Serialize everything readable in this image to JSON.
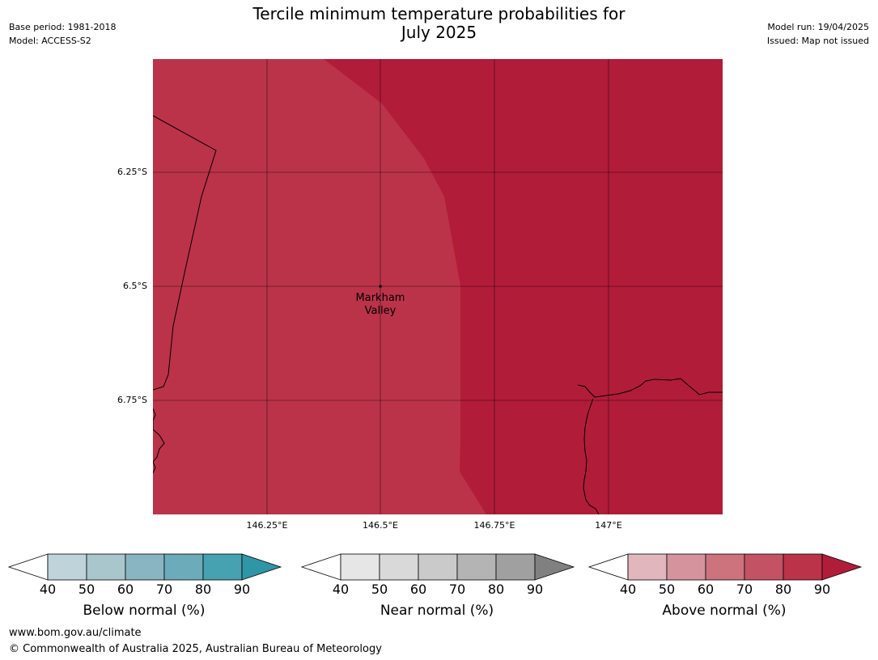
{
  "header": {
    "title_line1": "Tercile minimum temperature probabilities for",
    "title_line2": "July 2025",
    "base_period": "Base period: 1981-2018",
    "model": "Model: ACCESS-S2",
    "model_run": "Model run: 19/04/2025",
    "issued": "Issued: Map not issued"
  },
  "map": {
    "lat_ticks": [
      "6.25°S",
      "6.5°S",
      "6.75°S"
    ],
    "lon_ticks": [
      "146.25°E",
      "146.5°E",
      "146.75°E",
      "147°E"
    ],
    "place": {
      "name_line1": "Markham",
      "name_line2": "Valley"
    },
    "colors": {
      "zone_above_80_90": "#bb3349",
      "zone_above_90": "#b11c39",
      "coastline": "#000000",
      "gridline": "#000000"
    }
  },
  "colorbars": [
    {
      "title": "Below normal (%)",
      "ticks": [
        "40",
        "50",
        "60",
        "70",
        "80",
        "90"
      ],
      "colors": [
        "#ffffff",
        "#bed4da",
        "#a8c6cb",
        "#89b5c2",
        "#6cabb9",
        "#46a1b0",
        "#2e96a6"
      ]
    },
    {
      "title": "Near normal (%)",
      "ticks": [
        "40",
        "50",
        "60",
        "70",
        "80",
        "90"
      ],
      "colors": [
        "#ffffff",
        "#e6e6e6",
        "#d9d9d9",
        "#cacaca",
        "#b4b4b4",
        "#a0a0a0",
        "#808080"
      ]
    },
    {
      "title": "Above normal (%)",
      "ticks": [
        "40",
        "50",
        "60",
        "70",
        "80",
        "90"
      ],
      "colors": [
        "#ffffff",
        "#e1b6bc",
        "#d5949d",
        "#cc737e",
        "#c35364",
        "#bb3349",
        "#b11c39"
      ]
    }
  ],
  "footer": {
    "url": "www.bom.gov.au/climate",
    "copyright": "© Commonwealth of Australia 2025, Australian Bureau of Meteorology"
  }
}
